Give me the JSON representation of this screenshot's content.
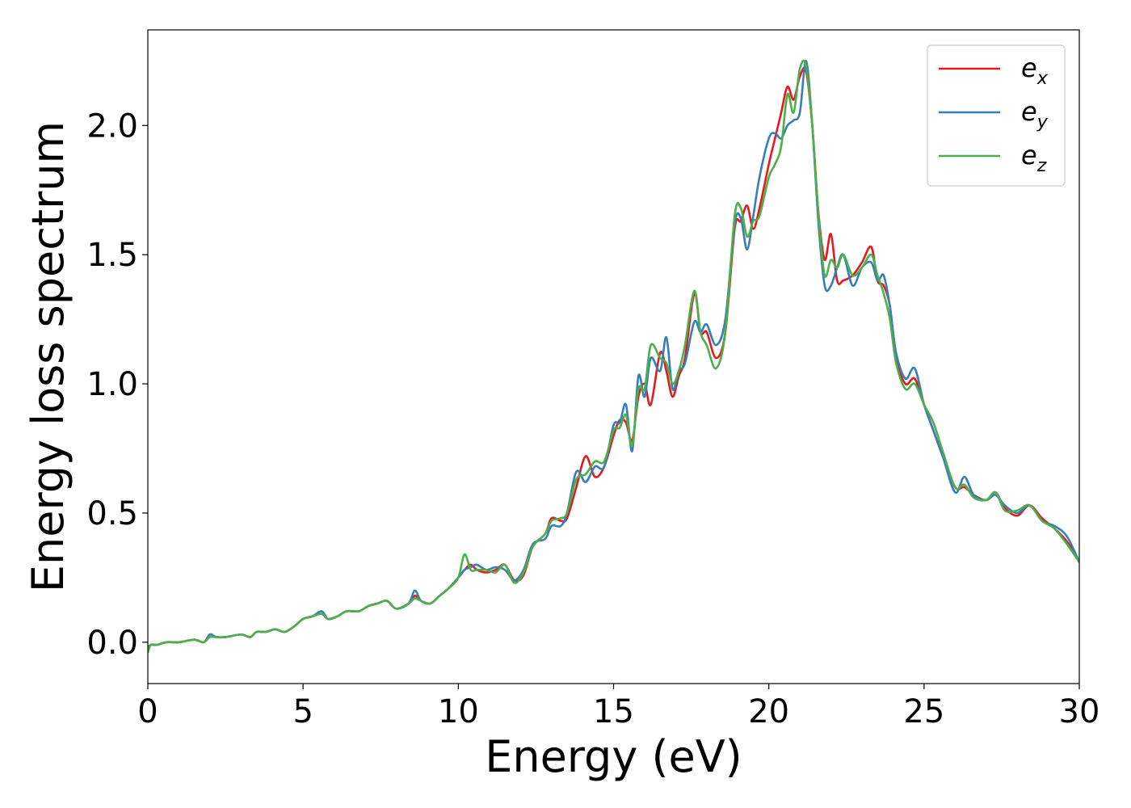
{
  "chart_data": {
    "type": "line",
    "xlabel": "Energy (eV)",
    "ylabel": "Energy loss spectrum",
    "xlim": [
      0,
      30
    ],
    "ylim": [
      -0.16,
      2.37
    ],
    "xticks": [
      0,
      5,
      10,
      15,
      20,
      25,
      30
    ],
    "yticks": [
      0.0,
      0.5,
      1.0,
      1.5,
      2.0
    ],
    "xtick_labels": [
      "0",
      "5",
      "10",
      "15",
      "20",
      "25",
      "30"
    ],
    "ytick_labels": [
      "0.0",
      "0.5",
      "1.0",
      "1.5",
      "2.0"
    ],
    "grid": false,
    "legend_position": "top-right",
    "series": [
      {
        "name": "e_x",
        "label_base": "e",
        "label_sub": "x",
        "color": "#e41a1c",
        "x": [
          0,
          0.1,
          0.3,
          0.6,
          1.0,
          1.5,
          1.8,
          2.0,
          2.2,
          2.5,
          3.0,
          3.3,
          3.5,
          3.8,
          4.1,
          4.4,
          4.7,
          5.0,
          5.3,
          5.6,
          5.8,
          6.1,
          6.4,
          6.8,
          7.1,
          7.4,
          7.7,
          8.0,
          8.4,
          8.6,
          8.8,
          9.1,
          9.4,
          9.7,
          10.0,
          10.2,
          10.4,
          10.6,
          10.9,
          11.2,
          11.5,
          11.8,
          12.1,
          12.4,
          12.8,
          13.0,
          13.3,
          13.5,
          13.8,
          14.1,
          14.4,
          14.7,
          15.0,
          15.2,
          15.4,
          15.6,
          15.8,
          16.0,
          16.2,
          16.5,
          16.7,
          16.9,
          17.1,
          17.3,
          17.6,
          17.8,
          18.0,
          18.3,
          18.6,
          18.9,
          19.1,
          19.3,
          19.5,
          19.7,
          20.0,
          20.2,
          20.4,
          20.6,
          20.8,
          21.0,
          21.2,
          21.4,
          21.6,
          21.8,
          22.0,
          22.2,
          22.4,
          22.7,
          23.0,
          23.3,
          23.5,
          23.7,
          23.9,
          24.1,
          24.4,
          24.7,
          25.0,
          25.3,
          25.6,
          26.0,
          26.3,
          26.6,
          27.0,
          27.3,
          27.6,
          28.0,
          28.4,
          28.8,
          29.2,
          29.6,
          30.0
        ],
        "y": [
          -0.03,
          -0.01,
          -0.01,
          0.0,
          0.0,
          0.01,
          0.0,
          0.03,
          0.02,
          0.02,
          0.03,
          0.02,
          0.04,
          0.04,
          0.05,
          0.04,
          0.06,
          0.09,
          0.1,
          0.11,
          0.09,
          0.1,
          0.12,
          0.12,
          0.14,
          0.15,
          0.16,
          0.13,
          0.15,
          0.18,
          0.16,
          0.15,
          0.18,
          0.21,
          0.25,
          0.28,
          0.3,
          0.28,
          0.27,
          0.28,
          0.3,
          0.24,
          0.26,
          0.37,
          0.42,
          0.48,
          0.47,
          0.48,
          0.6,
          0.72,
          0.64,
          0.68,
          0.8,
          0.86,
          0.85,
          0.78,
          0.95,
          1.0,
          0.92,
          1.12,
          1.05,
          0.95,
          1.03,
          1.1,
          1.35,
          1.2,
          1.2,
          1.1,
          1.2,
          1.6,
          1.63,
          1.69,
          1.6,
          1.68,
          1.85,
          1.95,
          2.05,
          2.15,
          2.1,
          2.19,
          2.21,
          2.0,
          1.66,
          1.48,
          1.58,
          1.4,
          1.4,
          1.42,
          1.47,
          1.53,
          1.4,
          1.38,
          1.3,
          1.1,
          1.0,
          1.02,
          0.92,
          0.82,
          0.72,
          0.6,
          0.6,
          0.57,
          0.55,
          0.58,
          0.52,
          0.49,
          0.53,
          0.48,
          0.44,
          0.39,
          0.31
        ]
      },
      {
        "name": "e_y",
        "label_base": "e",
        "label_sub": "y",
        "color": "#377eb8",
        "x": [
          0,
          0.1,
          0.3,
          0.6,
          1.0,
          1.5,
          1.8,
          2.0,
          2.2,
          2.5,
          3.0,
          3.3,
          3.5,
          3.8,
          4.1,
          4.4,
          4.7,
          5.0,
          5.3,
          5.6,
          5.8,
          6.1,
          6.4,
          6.8,
          7.1,
          7.4,
          7.7,
          8.0,
          8.4,
          8.6,
          8.8,
          9.1,
          9.4,
          9.7,
          10.0,
          10.2,
          10.4,
          10.6,
          10.9,
          11.2,
          11.5,
          11.8,
          12.1,
          12.4,
          12.8,
          13.0,
          13.3,
          13.5,
          13.8,
          14.1,
          14.4,
          14.7,
          15.0,
          15.2,
          15.4,
          15.6,
          15.8,
          16.0,
          16.2,
          16.5,
          16.7,
          16.9,
          17.1,
          17.3,
          17.6,
          17.8,
          18.0,
          18.3,
          18.6,
          18.9,
          19.1,
          19.3,
          19.5,
          19.7,
          20.0,
          20.2,
          20.4,
          20.6,
          20.8,
          21.0,
          21.2,
          21.4,
          21.6,
          21.8,
          22.0,
          22.2,
          22.4,
          22.7,
          23.0,
          23.3,
          23.5,
          23.7,
          23.9,
          24.1,
          24.4,
          24.7,
          25.0,
          25.3,
          25.6,
          26.0,
          26.3,
          26.6,
          27.0,
          27.3,
          27.6,
          28.0,
          28.4,
          28.8,
          29.2,
          29.6,
          30.0
        ],
        "y": [
          -0.02,
          -0.01,
          -0.01,
          0.0,
          0.0,
          0.01,
          0.0,
          0.03,
          0.02,
          0.02,
          0.03,
          0.02,
          0.04,
          0.04,
          0.05,
          0.04,
          0.06,
          0.09,
          0.1,
          0.12,
          0.09,
          0.1,
          0.12,
          0.12,
          0.14,
          0.15,
          0.16,
          0.13,
          0.15,
          0.2,
          0.16,
          0.15,
          0.18,
          0.21,
          0.25,
          0.28,
          0.29,
          0.3,
          0.28,
          0.29,
          0.28,
          0.24,
          0.28,
          0.38,
          0.4,
          0.45,
          0.45,
          0.5,
          0.66,
          0.62,
          0.68,
          0.68,
          0.84,
          0.85,
          0.92,
          0.74,
          1.03,
          0.95,
          1.1,
          1.05,
          1.18,
          0.98,
          1.05,
          1.08,
          1.24,
          1.2,
          1.23,
          1.15,
          1.25,
          1.62,
          1.64,
          1.52,
          1.65,
          1.8,
          1.95,
          1.97,
          1.95,
          2.0,
          2.02,
          2.05,
          2.25,
          2.0,
          1.62,
          1.38,
          1.38,
          1.45,
          1.5,
          1.38,
          1.45,
          1.47,
          1.4,
          1.42,
          1.3,
          1.12,
          1.02,
          1.06,
          0.92,
          0.82,
          0.72,
          0.58,
          0.64,
          0.57,
          0.55,
          0.57,
          0.53,
          0.5,
          0.53,
          0.47,
          0.45,
          0.41,
          0.31
        ]
      },
      {
        "name": "e_z",
        "label_base": "e",
        "label_sub": "z",
        "color": "#4daf4a",
        "x": [
          0,
          0.1,
          0.3,
          0.6,
          1.0,
          1.5,
          1.8,
          2.0,
          2.2,
          2.5,
          3.0,
          3.3,
          3.5,
          3.8,
          4.1,
          4.4,
          4.7,
          5.0,
          5.3,
          5.6,
          5.8,
          6.1,
          6.4,
          6.8,
          7.1,
          7.4,
          7.7,
          8.0,
          8.4,
          8.6,
          8.8,
          9.1,
          9.4,
          9.7,
          10.0,
          10.2,
          10.4,
          10.6,
          10.9,
          11.2,
          11.5,
          11.8,
          12.1,
          12.4,
          12.8,
          13.0,
          13.3,
          13.5,
          13.8,
          14.1,
          14.4,
          14.7,
          15.0,
          15.2,
          15.4,
          15.6,
          15.8,
          16.0,
          16.2,
          16.5,
          16.7,
          16.9,
          17.1,
          17.3,
          17.6,
          17.8,
          18.0,
          18.3,
          18.6,
          18.9,
          19.1,
          19.3,
          19.5,
          19.7,
          20.0,
          20.2,
          20.4,
          20.6,
          20.8,
          21.0,
          21.2,
          21.4,
          21.6,
          21.8,
          22.0,
          22.2,
          22.4,
          22.7,
          23.0,
          23.3,
          23.5,
          23.7,
          23.9,
          24.1,
          24.4,
          24.7,
          25.0,
          25.3,
          25.6,
          26.0,
          26.3,
          26.6,
          27.0,
          27.3,
          27.6,
          28.0,
          28.4,
          28.8,
          29.2,
          29.6,
          30.0
        ],
        "y": [
          -0.04,
          -0.01,
          -0.01,
          0.0,
          0.0,
          0.01,
          0.0,
          0.02,
          0.02,
          0.02,
          0.03,
          0.02,
          0.04,
          0.04,
          0.05,
          0.04,
          0.06,
          0.09,
          0.1,
          0.11,
          0.09,
          0.1,
          0.12,
          0.12,
          0.14,
          0.15,
          0.16,
          0.13,
          0.15,
          0.17,
          0.16,
          0.15,
          0.18,
          0.21,
          0.25,
          0.34,
          0.28,
          0.28,
          0.28,
          0.27,
          0.3,
          0.23,
          0.27,
          0.37,
          0.42,
          0.47,
          0.48,
          0.5,
          0.63,
          0.65,
          0.7,
          0.7,
          0.82,
          0.83,
          0.88,
          0.76,
          0.98,
          0.98,
          1.15,
          1.1,
          1.08,
          1.0,
          1.05,
          1.15,
          1.36,
          1.2,
          1.15,
          1.06,
          1.2,
          1.65,
          1.68,
          1.57,
          1.63,
          1.65,
          1.8,
          1.85,
          1.92,
          2.12,
          2.05,
          2.22,
          2.23,
          2.0,
          1.65,
          1.42,
          1.48,
          1.45,
          1.5,
          1.42,
          1.45,
          1.5,
          1.42,
          1.35,
          1.25,
          1.08,
          0.98,
          1.0,
          0.92,
          0.85,
          0.74,
          0.6,
          0.61,
          0.56,
          0.55,
          0.58,
          0.51,
          0.51,
          0.53,
          0.47,
          0.44,
          0.38,
          0.31
        ]
      }
    ]
  }
}
